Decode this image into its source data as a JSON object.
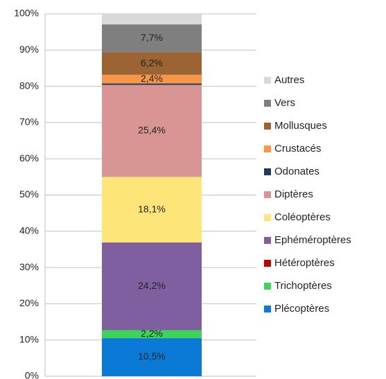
{
  "chart_data": {
    "type": "stacked_bar",
    "categories": [
      null
    ],
    "series": [
      {
        "name": "Plécoptères",
        "color": "#0a7ad6",
        "values": [
          10.5
        ],
        "value_labels": [
          "10,5%"
        ]
      },
      {
        "name": "Trichoptères",
        "color": "#3dd45a",
        "values": [
          2.2
        ],
        "value_labels": [
          "2,2%"
        ]
      },
      {
        "name": "Hétéroptères",
        "color": "#c00000",
        "values": [
          0
        ]
      },
      {
        "name": "Ephéméroptères",
        "color": "#7f5fa0",
        "values": [
          24.2
        ],
        "value_labels": [
          "24,2%"
        ]
      },
      {
        "name": "Coléoptères",
        "color": "#fde57a",
        "values": [
          18.1
        ],
        "value_labels": [
          "18,1%"
        ]
      },
      {
        "name": "Diptères",
        "color": "#d99594",
        "values": [
          25.4
        ],
        "value_labels": [
          "25,4%"
        ]
      },
      {
        "name": "Odonates",
        "color": "#1f3b5f",
        "values": [
          0.4
        ]
      },
      {
        "name": "Crustacés",
        "color": "#f79646",
        "values": [
          2.4
        ],
        "value_labels": [
          "2,4%"
        ]
      },
      {
        "name": "Mollusques",
        "color": "#9c6333",
        "values": [
          6.2
        ],
        "value_labels": [
          "6,2%"
        ]
      },
      {
        "name": "Vers",
        "color": "#7f7f7f",
        "values": [
          7.7
        ],
        "value_labels": [
          "7,7%"
        ]
      },
      {
        "name": "Autres",
        "color": "#d9d9d9",
        "values": [
          2.9
        ]
      }
    ],
    "ylim": [
      0,
      100
    ],
    "yticks": [
      {
        "value": 0,
        "label": "0%"
      },
      {
        "value": 10,
        "label": "10%"
      },
      {
        "value": 20,
        "label": "20%"
      },
      {
        "value": 30,
        "label": "30%"
      },
      {
        "value": 40,
        "label": "40%"
      },
      {
        "value": 50,
        "label": "50%"
      },
      {
        "value": 60,
        "label": "60%"
      },
      {
        "value": 70,
        "label": "70%"
      },
      {
        "value": 80,
        "label": "80%"
      },
      {
        "value": 90,
        "label": "90%"
      },
      {
        "value": 100,
        "label": "100%"
      }
    ],
    "grid": true,
    "legend": "right"
  }
}
